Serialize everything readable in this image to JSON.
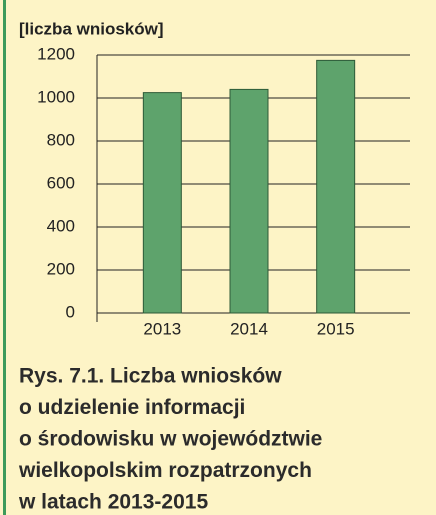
{
  "chart_data": {
    "type": "bar",
    "y_label": "[liczba wniosków]",
    "categories": [
      "2013",
      "2014",
      "2015"
    ],
    "values": [
      1025,
      1040,
      1175
    ],
    "color": "#5ea36c",
    "ylim": [
      0,
      1200
    ],
    "yticks": [
      0,
      200,
      400,
      600,
      800,
      1000,
      1200
    ],
    "grid": true,
    "caption": [
      "Rys. 7.1. Liczba wniosków",
      "o udzielenie informacji",
      "o środowisku w województwie",
      "wielkopolskim rozpatrzonych",
      "w latach 2013-2015"
    ]
  }
}
